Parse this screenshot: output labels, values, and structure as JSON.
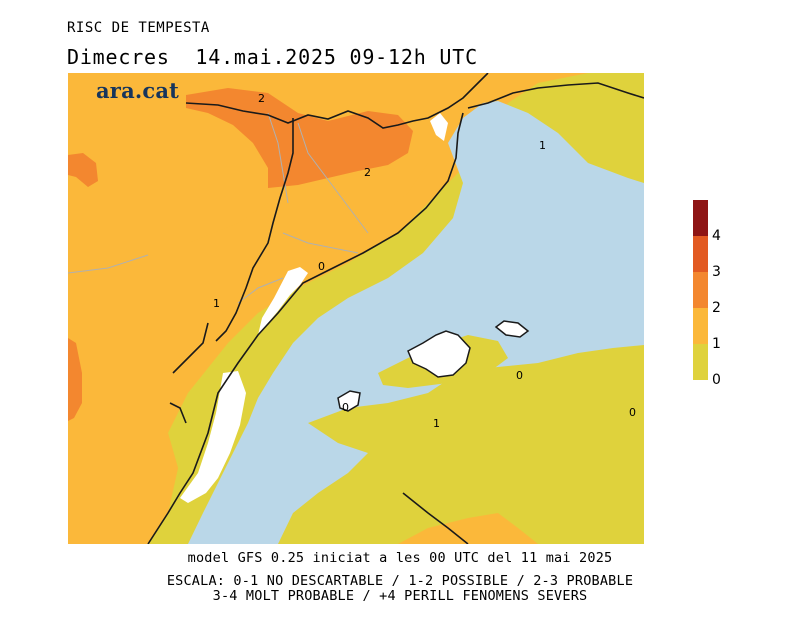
{
  "header": {
    "title": "RISC DE TEMPESTA",
    "subtitle": "Dimecres  14.mai.2025 09-12h UTC"
  },
  "logo": {
    "text": "ara.cat"
  },
  "map": {
    "contour_labels": [
      "2",
      "2",
      "1",
      "0",
      "1",
      "0",
      "1",
      "0",
      "0"
    ],
    "colors": {
      "sea": "#bad7e8",
      "level_0_1": "#dfd23c",
      "level_1_2": "#fbb83a",
      "level_2_3": "#f3872f",
      "level_3_4": "#e25a22",
      "level_4_plus": "#8e1515",
      "no_data": "#ffffff",
      "border": "#1a1a1a",
      "region_line": "#b0b0b0"
    }
  },
  "legend": {
    "ticks": [
      "4",
      "3",
      "2",
      "1",
      "0"
    ]
  },
  "footer": {
    "line1": "model GFS 0.25 iniciat a les 00 UTC del 11 mai 2025",
    "line2": "ESCALA: 0-1 NO DESCARTABLE / 1-2 POSSIBLE / 2-3 PROBABLE",
    "line3": "3-4 MOLT PROBABLE / +4 PERILL FENOMENS SEVERS"
  }
}
